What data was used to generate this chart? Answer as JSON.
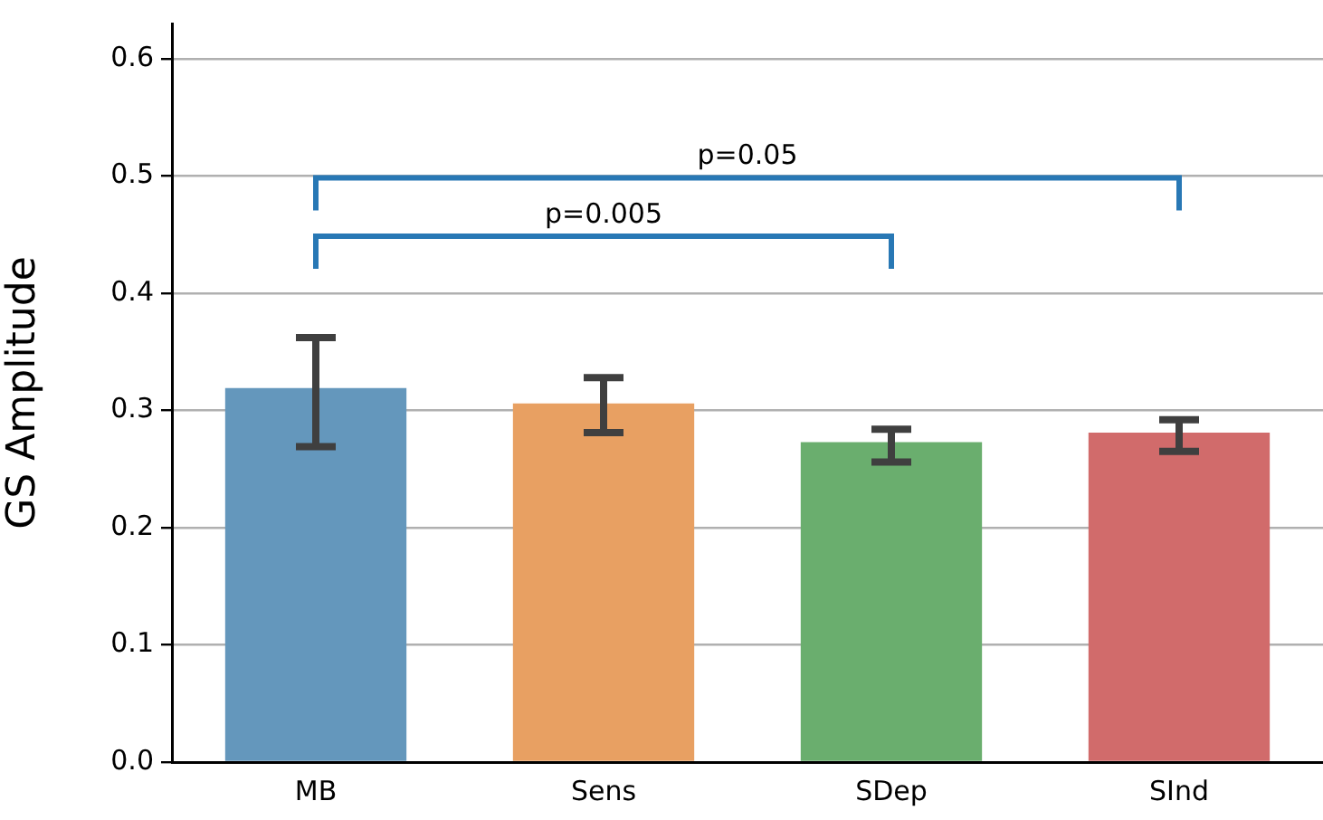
{
  "chart_data": {
    "type": "bar",
    "ylabel": "GS Amplitude",
    "categories": [
      "MB",
      "Sens",
      "SDep",
      "SInd"
    ],
    "values": [
      0.319,
      0.306,
      0.273,
      0.281
    ],
    "colors": [
      "#6497bc",
      "#e8a062",
      "#6aae6e",
      "#d16b6b"
    ],
    "errors": [
      [
        0.269,
        0.362
      ],
      [
        0.281,
        0.328
      ],
      [
        0.256,
        0.284
      ],
      [
        0.265,
        0.292
      ]
    ],
    "ylim": [
      0,
      0.63
    ],
    "yticks": [
      {
        "value": 0,
        "label": "0.0"
      },
      0.1,
      0.2,
      0.3,
      0.4,
      0.5,
      0.6
    ],
    "grid": "y",
    "legend": false,
    "annotations": [
      "p=0.05",
      "p=0.005"
    ]
  }
}
